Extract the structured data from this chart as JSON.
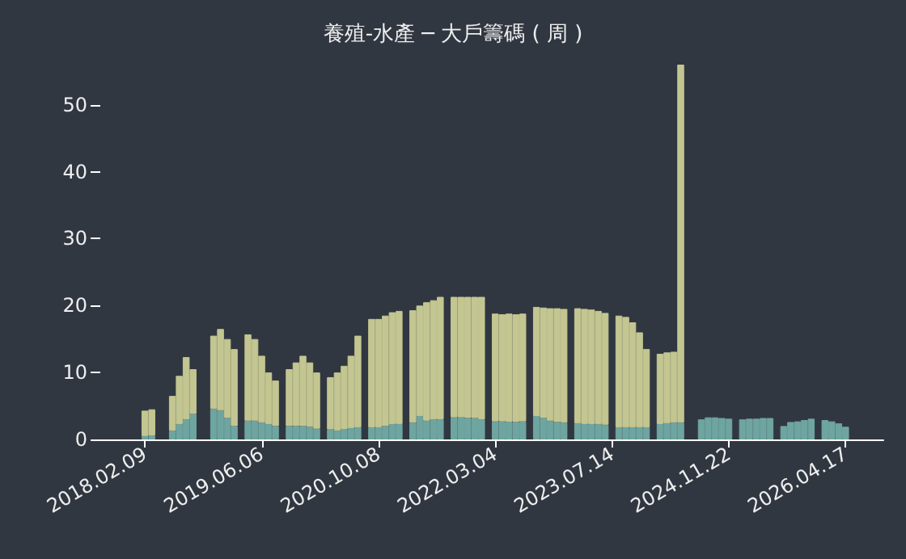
{
  "chart_data": {
    "type": "bar",
    "title": "養殖-水產 ─ 大戶籌碼 ( 周 )",
    "categories": [
      null,
      null,
      null,
      null,
      null,
      null,
      "2018.02.09",
      null,
      null,
      null,
      null,
      null,
      null,
      null,
      null,
      null,
      null,
      null,
      null,
      null,
      null,
      null,
      null,
      "2019.06.06",
      null,
      null,
      null,
      null,
      null,
      null,
      null,
      null,
      null,
      null,
      null,
      null,
      null,
      null,
      null,
      null,
      "2020.10.08",
      null,
      null,
      null,
      null,
      null,
      null,
      null,
      null,
      null,
      null,
      null,
      null,
      null,
      null,
      null,
      null,
      "2022.03.04",
      null,
      null,
      null,
      null,
      null,
      null,
      null,
      null,
      null,
      null,
      null,
      null,
      null,
      null,
      null,
      null,
      "2023.07.14",
      null,
      null,
      null,
      null,
      null,
      null,
      null,
      null,
      null,
      null,
      null,
      null,
      null,
      null,
      null,
      null,
      "2024.11.22",
      null,
      null,
      null,
      null,
      null,
      null,
      null,
      null,
      null,
      null,
      null,
      null,
      null,
      null,
      null,
      null,
      "2026.04.17",
      null,
      null,
      null,
      null,
      null
    ],
    "series": [
      {
        "color": "#6fa5a0",
        "values": [
          null,
          null,
          null,
          null,
          null,
          null,
          0.5,
          0.6,
          null,
          null,
          1.3,
          2.3,
          3,
          3.8,
          null,
          null,
          4.6,
          4.3,
          3.2,
          2.0,
          null,
          2.8,
          2.8,
          2.5,
          2.3,
          2,
          null,
          2,
          2,
          2,
          1.9,
          1.6,
          null,
          1.5,
          1.3,
          1.5,
          1.7,
          1.8,
          null,
          1.8,
          1.8,
          2,
          2.3,
          2.3,
          null,
          2.5,
          3.5,
          2.8,
          3,
          3,
          null,
          3.3,
          3.3,
          3.2,
          3.2,
          3.0,
          null,
          2.7,
          2.7,
          2.6,
          2.6,
          2.7,
          null,
          3.5,
          3.2,
          2.8,
          2.6,
          2.5,
          null,
          2.4,
          2.3,
          2.3,
          2.3,
          2.2,
          null,
          1.8,
          1.8,
          1.8,
          1.8,
          1.8,
          null,
          2.3,
          2.4,
          2.5,
          2.5,
          null,
          null,
          3.0,
          3.3,
          3.3,
          3.2,
          3.1,
          null,
          3.0,
          3.1,
          3.1,
          3.2,
          3.2,
          null,
          2.0,
          2.6,
          2.7,
          2.9,
          3.1,
          null,
          2.9,
          2.7,
          2.4,
          1.9,
          null,
          null,
          null,
          null,
          null
        ]
      },
      {
        "color": "#c3c691",
        "values": [
          null,
          null,
          null,
          null,
          null,
          null,
          3.8,
          3.9,
          null,
          null,
          5.2,
          7.2,
          9.3,
          6.7,
          null,
          null,
          10.9,
          12.2,
          11.8,
          11.5,
          null,
          12.9,
          12.2,
          10,
          7.7,
          6.8,
          null,
          8.5,
          9.5,
          10.5,
          9.6,
          8.4,
          null,
          7.8,
          8.7,
          9.5,
          10.8,
          13.7,
          null,
          16.2,
          16.2,
          16.5,
          16.7,
          16.9,
          null,
          16.8,
          16.5,
          17.7,
          17.8,
          18.3,
          null,
          18,
          18,
          18.1,
          18.1,
          18.3,
          null,
          16.1,
          16,
          16.2,
          16.1,
          16.1,
          null,
          16.3,
          16.5,
          16.8,
          17,
          17,
          null,
          17.2,
          17.2,
          17.1,
          16.9,
          16.7,
          null,
          16.7,
          16.5,
          15.7,
          14.2,
          11.7,
          null,
          10.5,
          10.6,
          10.6,
          53.5,
          null,
          null,
          null,
          null,
          null,
          null,
          null,
          null,
          null,
          null,
          null,
          null,
          null,
          null,
          null,
          null,
          null,
          null,
          null,
          null,
          null,
          null,
          null,
          null,
          null,
          null,
          null,
          null,
          null
        ]
      }
    ],
    "stacked": true,
    "ylim": [
      0,
      56
    ],
    "yticks": [
      0,
      10,
      20,
      30,
      40,
      50
    ],
    "grid": false
  }
}
